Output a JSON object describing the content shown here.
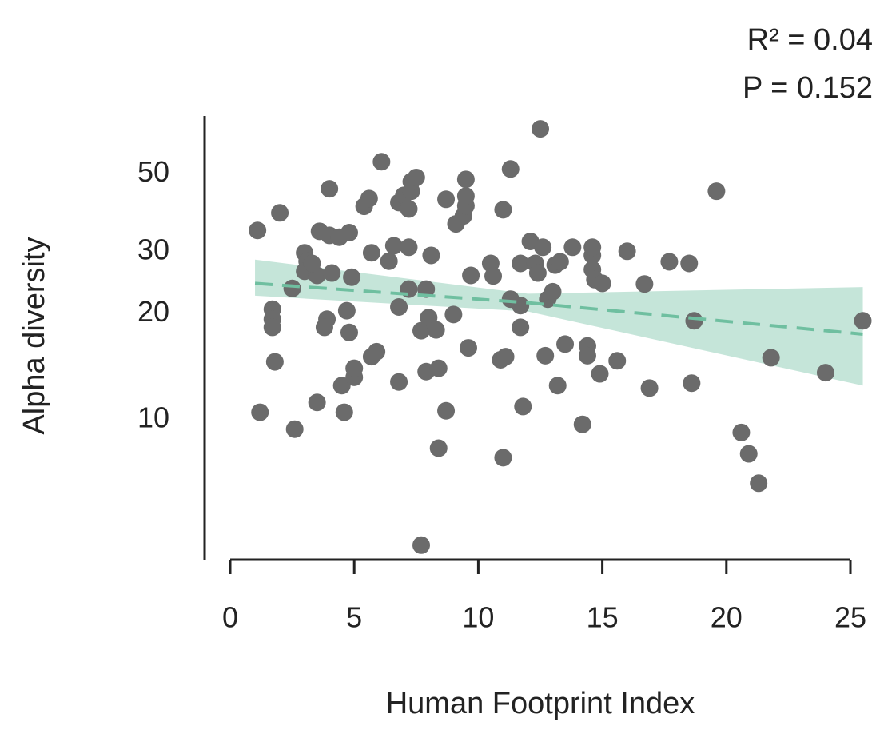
{
  "chart_data": {
    "type": "scatter",
    "xlabel": "Human Footprint Index",
    "ylabel": "Alpha diversity",
    "annotations": [
      "R² = 0.04",
      "P = 0.152"
    ],
    "color": "#6b6b6b",
    "yscale": "log",
    "xlim": [
      0,
      25
    ],
    "xticks": [
      0,
      5,
      10,
      15,
      20,
      25
    ],
    "ylim": [
      4,
      73
    ],
    "yticks": [
      10,
      20,
      30,
      50
    ],
    "x": [
      1.1,
      2.0,
      1.2,
      1.7,
      1.7,
      1.7,
      1.8,
      2.6,
      2.5,
      3.0,
      3.1,
      3.2,
      3.0,
      3.5,
      3.3,
      3.6,
      4.0,
      4.0,
      4.1,
      3.9,
      3.8,
      3.5,
      4.6,
      4.5,
      4.7,
      4.8,
      4.9,
      4.8,
      4.4,
      5.0,
      5.0,
      5.4,
      5.6,
      5.7,
      5.9,
      5.7,
      6.1,
      6.4,
      6.6,
      6.8,
      6.8,
      6.8,
      7.0,
      7.2,
      7.3,
      7.3,
      7.2,
      7.2,
      7.5,
      7.7,
      7.7,
      7.9,
      7.9,
      8.1,
      8.0,
      8.3,
      8.4,
      8.4,
      8.7,
      8.7,
      9.1,
      9.4,
      9.5,
      9.5,
      9.5,
      9.0,
      9.7,
      9.6,
      10.5,
      10.6,
      10.9,
      11.1,
      11.0,
      11.0,
      11.3,
      11.3,
      11.7,
      11.8,
      11.7,
      11.7,
      12.1,
      12.3,
      12.4,
      12.5,
      12.6,
      12.8,
      12.7,
      13.0,
      13.1,
      13.3,
      13.2,
      13.5,
      13.8,
      14.2,
      14.4,
      14.4,
      14.6,
      14.6,
      14.6,
      14.7,
      15.0,
      14.9,
      15.6,
      16.0,
      16.7,
      16.9,
      17.7,
      18.5,
      18.6,
      18.7,
      19.6,
      20.6,
      20.9,
      21.3,
      21.8,
      24.0,
      25.5
    ],
    "values": [
      34.5,
      38.7,
      10.5,
      20.6,
      19.3,
      18.3,
      14.6,
      9.4,
      23.6,
      29.8,
      28.2,
      27.1,
      26.4,
      25.7,
      27.8,
      34.3,
      33.4,
      45.3,
      26.1,
      19.3,
      18.3,
      11.2,
      10.5,
      12.5,
      20.4,
      17.7,
      25.4,
      34.0,
      33.0,
      13.2,
      14.0,
      40.4,
      42.5,
      15.1,
      15.6,
      29.8,
      54.1,
      28.2,
      31.2,
      12.8,
      20.9,
      41.4,
      43.4,
      39.7,
      44.6,
      47.5,
      30.9,
      23.5,
      48.8,
      4.4,
      17.9,
      23.5,
      13.7,
      29.3,
      19.5,
      18.0,
      14.0,
      8.3,
      10.6,
      42.3,
      36.0,
      37.9,
      40.5,
      43.2,
      48.2,
      19.9,
      25.7,
      16.0,
      27.8,
      25.6,
      14.8,
      15.1,
      39.5,
      7.8,
      51.6,
      22.0,
      18.3,
      10.9,
      21.1,
      27.8,
      32.1,
      27.8,
      26.1,
      67.1,
      30.9,
      22.0,
      15.2,
      23.1,
      27.5,
      28.1,
      12.5,
      16.4,
      30.9,
      9.7,
      16.2,
      15.2,
      29.3,
      26.7,
      30.9,
      25.0,
      24.4,
      13.5,
      14.7,
      30.1,
      24.3,
      12.3,
      28.1,
      27.8,
      12.7,
      19.1,
      44.6,
      9.2,
      8.0,
      6.6,
      15.0,
      13.6,
      19.1
    ],
    "fit": {
      "color": "#6fbfa0",
      "x": [
        1,
        12,
        25.5
      ],
      "values": [
        24.4,
        21.5,
        17.5
      ],
      "upper": [
        28.5,
        22.8,
        23.8
      ],
      "lower": [
        22.5,
        20.3,
        12.5
      ]
    }
  }
}
